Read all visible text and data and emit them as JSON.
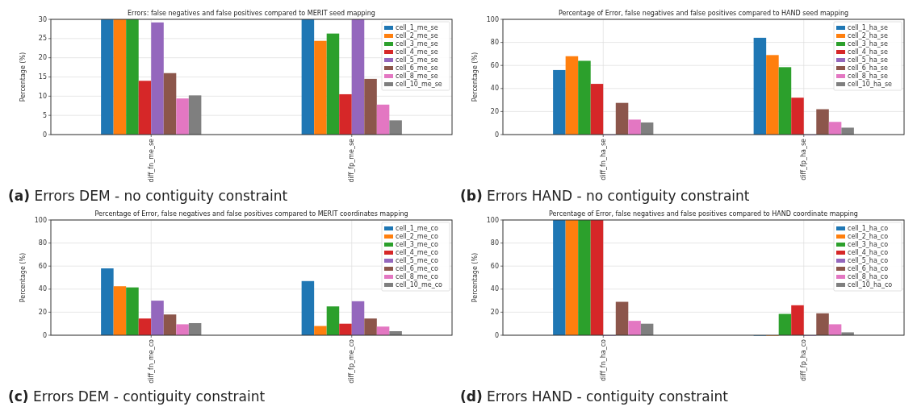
{
  "chart_data": [
    {
      "type": "bar",
      "title": "Errors: false negatives and false positives compared to MERIT seed mapping",
      "ylabel": "Percentage (%)",
      "categories": [
        "diff_fn_me_se",
        "diff_fp_me_se"
      ],
      "ylim": [
        0,
        30
      ],
      "yticks": [
        0,
        5,
        10,
        15,
        20,
        25,
        30
      ],
      "grid": true,
      "legend": "top right",
      "annotations": [
        "(a) Errors DEM - no contiguity constraint"
      ],
      "series": [
        {
          "name": "cell_1_me_se",
          "color": "#1f77b4",
          "values": [
            30,
            30
          ]
        },
        {
          "name": "cell_2_me_se",
          "color": "#ff7f0e",
          "values": [
            30,
            24.4
          ]
        },
        {
          "name": "cell_3_me_se",
          "color": "#2ca02c",
          "values": [
            30,
            26.3
          ]
        },
        {
          "name": "cell_4_me_se",
          "color": "#d62728",
          "values": [
            14,
            10.5
          ]
        },
        {
          "name": "cell_5_me_se",
          "color": "#9467bd",
          "values": [
            29.2,
            30
          ]
        },
        {
          "name": "cell_6_me_se",
          "color": "#8c564b",
          "values": [
            16,
            14.5
          ]
        },
        {
          "name": "cell_8_me_se",
          "color": "#e377c2",
          "values": [
            9.4,
            7.8
          ]
        },
        {
          "name": "cell_10_me_se",
          "color": "#7f7f7f",
          "values": [
            10.2,
            3.7
          ]
        }
      ]
    },
    {
      "type": "bar",
      "title": "Percentage of Error, false negatives and false positives compared to HAND seed mapping",
      "ylabel": "Percentage (%)",
      "categories": [
        "diff_fn_ha_se",
        "diff_fp_ha_se"
      ],
      "ylim": [
        0,
        100
      ],
      "yticks": [
        0,
        20,
        40,
        60,
        80,
        100
      ],
      "grid": true,
      "legend": "top right",
      "annotations": [
        "(b) Errors HAND - no contiguity constraint"
      ],
      "series": [
        {
          "name": "cell_1_ha_se",
          "color": "#1f77b4",
          "values": [
            56,
            84
          ]
        },
        {
          "name": "cell_2_ha_se",
          "color": "#ff7f0e",
          "values": [
            68,
            69
          ]
        },
        {
          "name": "cell_3_ha_se",
          "color": "#2ca02c",
          "values": [
            64,
            58.5
          ]
        },
        {
          "name": "cell_4_ha_se",
          "color": "#d62728",
          "values": [
            44,
            32
          ]
        },
        {
          "name": "cell_5_ha_se",
          "color": "#9467bd",
          "values": [
            0,
            0
          ]
        },
        {
          "name": "cell_6_ha_se",
          "color": "#8c564b",
          "values": [
            27.5,
            22
          ]
        },
        {
          "name": "cell_8_ha_se",
          "color": "#e377c2",
          "values": [
            13,
            11
          ]
        },
        {
          "name": "cell_10_ha_se",
          "color": "#7f7f7f",
          "values": [
            10.5,
            6
          ]
        }
      ]
    },
    {
      "type": "bar",
      "title": "Percentage of Error, false negatives and false positives compared to MERIT coordinates mapping",
      "ylabel": "Percentage (%)",
      "categories": [
        "diff_fn_me_co",
        "diff_fp_me_co"
      ],
      "ylim": [
        0,
        100
      ],
      "yticks": [
        0,
        20,
        40,
        60,
        80,
        100
      ],
      "grid": true,
      "legend": "top right",
      "annotations": [
        "(c) Errors DEM - contiguity constraint"
      ],
      "series": [
        {
          "name": "cell_1_me_co",
          "color": "#1f77b4",
          "values": [
            58,
            47
          ]
        },
        {
          "name": "cell_2_me_co",
          "color": "#ff7f0e",
          "values": [
            42.5,
            8
          ]
        },
        {
          "name": "cell_3_me_co",
          "color": "#2ca02c",
          "values": [
            41.5,
            25
          ]
        },
        {
          "name": "cell_4_me_co",
          "color": "#d62728",
          "values": [
            14.5,
            10
          ]
        },
        {
          "name": "cell_5_me_co",
          "color": "#9467bd",
          "values": [
            30,
            29.5
          ]
        },
        {
          "name": "cell_6_me_co",
          "color": "#8c564b",
          "values": [
            18,
            14.5
          ]
        },
        {
          "name": "cell_8_me_co",
          "color": "#e377c2",
          "values": [
            9.5,
            7.5
          ]
        },
        {
          "name": "cell_10_me_co",
          "color": "#7f7f7f",
          "values": [
            10.5,
            3.5
          ]
        }
      ]
    },
    {
      "type": "bar",
      "title": "Percentage of Error, false negatives and false positives compared to HAND coordinate mapping",
      "ylabel": "Percentage (%)",
      "categories": [
        "diff_fn_ha_co",
        "diff_fp_ha_co"
      ],
      "ylim": [
        0,
        100
      ],
      "yticks": [
        0,
        20,
        40,
        60,
        80,
        100
      ],
      "grid": true,
      "legend": "top right",
      "annotations": [
        "(d) Errors HAND - contiguity constraint"
      ],
      "series": [
        {
          "name": "cell_1_ha_co",
          "color": "#1f77b4",
          "values": [
            100,
            0
          ]
        },
        {
          "name": "cell_2_ha_co",
          "color": "#ff7f0e",
          "values": [
            100,
            0
          ]
        },
        {
          "name": "cell_3_ha_co",
          "color": "#2ca02c",
          "values": [
            100,
            18.5
          ]
        },
        {
          "name": "cell_4_ha_co",
          "color": "#d62728",
          "values": [
            100,
            26
          ]
        },
        {
          "name": "cell_5_ha_co",
          "color": "#9467bd",
          "values": [
            0,
            0
          ]
        },
        {
          "name": "cell_6_ha_co",
          "color": "#8c564b",
          "values": [
            29,
            19
          ]
        },
        {
          "name": "cell_8_ha_co",
          "color": "#e377c2",
          "values": [
            12.5,
            9.5
          ]
        },
        {
          "name": "cell_10_ha_co",
          "color": "#7f7f7f",
          "values": [
            10,
            2.5
          ]
        }
      ]
    }
  ]
}
